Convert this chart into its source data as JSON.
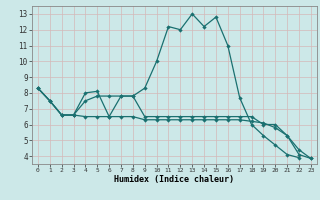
{
  "xlabel": "Humidex (Indice chaleur)",
  "bg_color": "#cce8e8",
  "line_color": "#1a7070",
  "grid_color": "#b0d8d8",
  "x_ticks": [
    0,
    1,
    2,
    3,
    4,
    5,
    6,
    7,
    8,
    9,
    10,
    11,
    12,
    13,
    14,
    15,
    16,
    17,
    18,
    19,
    20,
    21,
    22,
    23
  ],
  "y_ticks": [
    4,
    5,
    6,
    7,
    8,
    9,
    10,
    11,
    12,
    13
  ],
  "xlim": [
    -0.5,
    23.5
  ],
  "ylim": [
    3.5,
    13.5
  ],
  "line1_x": [
    0,
    1,
    2,
    3,
    4,
    5,
    6,
    7,
    8,
    9,
    10,
    11,
    12,
    13,
    14,
    15,
    16,
    17,
    18,
    19,
    20,
    21,
    22
  ],
  "line1_y": [
    8.3,
    7.5,
    6.6,
    6.6,
    8.0,
    8.1,
    6.5,
    7.8,
    7.8,
    8.3,
    10.0,
    12.2,
    12.0,
    13.0,
    12.2,
    12.8,
    11.0,
    7.7,
    6.0,
    5.3,
    4.7,
    4.1,
    3.9
  ],
  "line2_x": [
    0,
    1,
    2,
    3,
    4,
    5,
    6,
    7,
    8,
    9,
    10,
    11,
    12,
    13,
    14,
    15,
    16,
    17,
    18,
    19,
    20,
    21,
    22,
    23
  ],
  "line2_y": [
    8.3,
    7.5,
    6.6,
    6.6,
    6.5,
    6.5,
    6.5,
    6.5,
    6.5,
    6.3,
    6.3,
    6.3,
    6.3,
    6.3,
    6.3,
    6.3,
    6.3,
    6.3,
    6.2,
    6.1,
    5.8,
    5.3,
    4.4,
    3.85
  ],
  "line3_x": [
    0,
    1,
    2,
    3,
    4,
    5,
    6,
    7,
    8,
    9,
    10,
    11,
    12,
    13,
    14,
    15,
    16,
    17,
    18,
    19,
    20,
    21,
    22,
    23
  ],
  "line3_y": [
    8.3,
    7.5,
    6.6,
    6.6,
    7.5,
    7.8,
    7.8,
    7.8,
    7.8,
    6.5,
    6.5,
    6.5,
    6.5,
    6.5,
    6.5,
    6.5,
    6.5,
    6.5,
    6.5,
    6.0,
    6.0,
    5.3,
    4.1,
    3.85
  ]
}
